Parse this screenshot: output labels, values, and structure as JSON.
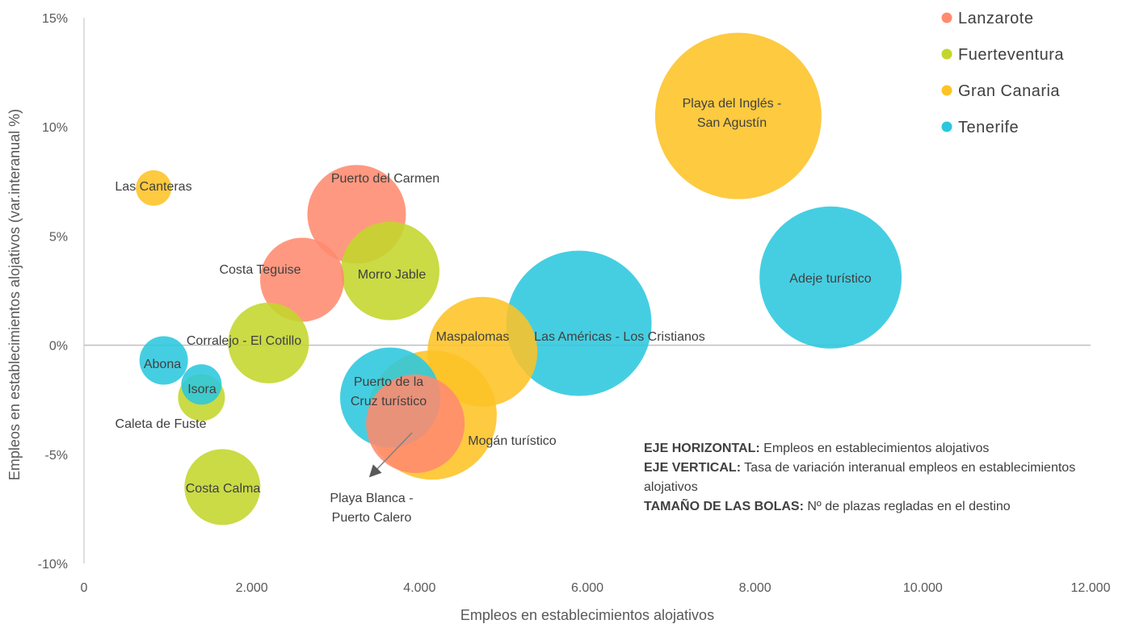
{
  "chart_data": {
    "type": "bubble",
    "xlabel": "Empleos en establecimientos alojativos",
    "ylabel": "Empleos en establecimientos alojativos (var.interanual %)",
    "xlim": [
      0,
      12000
    ],
    "ylim": [
      -10,
      15
    ],
    "xticks": [
      {
        "value": 0,
        "label": "0"
      },
      {
        "value": 2000,
        "label": "2.000"
      },
      {
        "value": 4000,
        "label": "4.000"
      },
      {
        "value": 6000,
        "label": "6.000"
      },
      {
        "value": 8000,
        "label": "8.000"
      },
      {
        "value": 10000,
        "label": "10.000"
      },
      {
        "value": 12000,
        "label": "12.000"
      }
    ],
    "yticks": [
      {
        "value": 15,
        "label": "15%"
      },
      {
        "value": 10,
        "label": "10%"
      },
      {
        "value": 5,
        "label": "5%"
      },
      {
        "value": 0,
        "label": "0%"
      },
      {
        "value": -5,
        "label": "-5%"
      },
      {
        "value": -10,
        "label": "-10%"
      }
    ],
    "grid": false,
    "legend_position": "top-right",
    "series": [
      {
        "name": "Lanzarote",
        "color": "#FF8A6E",
        "points": [
          {
            "label": "Puerto del Carmen",
            "x": 3250,
            "y": 6.0,
            "size": 61
          },
          {
            "label": "Costa Teguise",
            "x": 2600,
            "y": 3.0,
            "size": 52
          },
          {
            "label": "Playa Blanca - Puerto Calero",
            "x": 3950,
            "y": -3.6,
            "size": 61
          }
        ]
      },
      {
        "name": "Fuerteventura",
        "color": "#C3D62B",
        "points": [
          {
            "label": "Morro Jable",
            "x": 3650,
            "y": 3.4,
            "size": 61
          },
          {
            "label": "Corralejo - El Cotillo",
            "x": 2200,
            "y": 0.1,
            "size": 50
          },
          {
            "label": "Caleta de Fuste",
            "x": 1400,
            "y": -2.4,
            "size": 29
          },
          {
            "label": "Costa Calma",
            "x": 1650,
            "y": -6.5,
            "size": 47
          }
        ]
      },
      {
        "name": "Gran Canaria",
        "color": "#FDC325",
        "points": [
          {
            "label": "Las Canteras",
            "x": 830,
            "y": 7.2,
            "size": 22
          },
          {
            "label": "Playa del Inglés - San Agustín",
            "x": 7800,
            "y": 10.5,
            "size": 103
          },
          {
            "label": "Maspalomas",
            "x": 4750,
            "y": -0.3,
            "size": 68
          },
          {
            "label": "Mogán turístico",
            "x": 4150,
            "y": -3.2,
            "size": 80
          }
        ]
      },
      {
        "name": "Tenerife",
        "color": "#2BC7DE",
        "points": [
          {
            "label": "Adeje turístico",
            "x": 8900,
            "y": 3.1,
            "size": 88
          },
          {
            "label": "Las Américas - Los Cristianos",
            "x": 5900,
            "y": 1.0,
            "size": 90
          },
          {
            "label": "Puerto de la Cruz turístico",
            "x": 3650,
            "y": -2.4,
            "size": 62
          },
          {
            "label": "Abona",
            "x": 950,
            "y": -0.7,
            "size": 30
          },
          {
            "label": "Isora",
            "x": 1400,
            "y": -1.8,
            "size": 25
          }
        ]
      }
    ]
  },
  "notes": {
    "horizontal_label": "EJE HORIZONTAL:",
    "horizontal_text": " Empleos en establecimientos alojativos",
    "vertical_label": "EJE VERTICAL:",
    "vertical_text": " Tasa de variación interanual empleos en establecimientos alojativos",
    "size_label": "TAMAÑO DE LAS BOLAS:",
    "size_text": " Nº de plazas regladas en el destino"
  }
}
